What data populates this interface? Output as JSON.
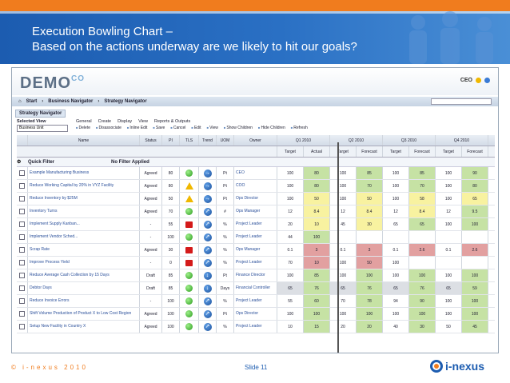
{
  "slide": {
    "title_line1": "Execution Bowling Chart –",
    "title_line2": "Based on the actions underway are we likely to hit our goals?",
    "footer_left": "© i-nexus 2010",
    "footer_mid": "Slide 11",
    "footer_logo": "i-nexus"
  },
  "app": {
    "logo_main": "DEMO",
    "logo_co": "CO",
    "user": "CEO",
    "nav": [
      "Start",
      "Business Navigator",
      "Strategy Navigator"
    ],
    "panel_title": "Strategy Navigator",
    "selected_view_label": "Selected View",
    "selected_view_value": "Business Unit",
    "menu_tabs": [
      "General",
      "Create",
      "Display",
      "View",
      "Reports & Outputs"
    ],
    "toolbar": [
      "Delete",
      "Disassociate",
      "Inline Edit",
      "Save",
      "Cancel",
      "Edit",
      "View",
      "Show Children",
      "Hide Children",
      "Refresh"
    ],
    "quick_filter": "Quick Filter",
    "no_filter": "No Filter Applied"
  },
  "grid": {
    "headers": [
      "Name",
      "Status",
      "PI",
      "TLS",
      "Trend",
      "UOM",
      "Owner"
    ],
    "quarters": [
      "Q1 2010",
      "Q2 2010",
      "Q3 2010",
      "Q4 2010"
    ],
    "sub_headers": [
      "Target",
      "Actual",
      "Target",
      "Forecast",
      "Target",
      "Forecast",
      "Target",
      "Forecast"
    ],
    "rows": [
      {
        "name": "Example Manufacturing Business",
        "status": "Agreed",
        "pi": "80",
        "tls": "green",
        "trend": "→",
        "uom": "Pt",
        "owner": "CEO",
        "vals": [
          "100",
          "80",
          "100",
          "85",
          "100",
          "85",
          "100",
          "90"
        ],
        "cls": [
          "",
          "bg-green",
          "",
          "bg-green",
          "",
          "bg-green",
          "",
          "bg-green"
        ]
      },
      {
        "name": "Reduce Working Capital by 20% in VYZ Facility",
        "status": "Agreed",
        "pi": "80",
        "tls": "amber",
        "trend": "→",
        "uom": "Pt",
        "owner": "COO",
        "vals": [
          "100",
          "80",
          "100",
          "70",
          "100",
          "70",
          "100",
          "80"
        ],
        "cls": [
          "",
          "bg-green",
          "",
          "bg-green",
          "",
          "bg-green",
          "",
          "bg-green"
        ]
      },
      {
        "name": "Reduce Inventory by $25M",
        "status": "Agreed",
        "pi": "50",
        "tls": "amber",
        "trend": "→",
        "uom": "Pt",
        "owner": "Ops Director",
        "vals": [
          "100",
          "50",
          "100",
          "50",
          "100",
          "58",
          "100",
          "65"
        ],
        "cls": [
          "",
          "bg-yellow",
          "",
          "bg-yellow",
          "",
          "bg-yellow",
          "",
          "bg-yellow"
        ]
      },
      {
        "name": "Inventory Turns",
        "status": "Agreed",
        "pi": "70",
        "tls": "green",
        "trend": "↗",
        "uom": "#",
        "owner": "Ops Manager",
        "vals": [
          "12",
          "8.4",
          "12",
          "8.4",
          "12",
          "8.4",
          "12",
          "9.5"
        ],
        "cls": [
          "",
          "bg-yellow",
          "",
          "bg-yellow",
          "",
          "bg-yellow",
          "",
          "bg-green"
        ]
      },
      {
        "name": "Implement Supply Kanban...",
        "status": "-",
        "pi": "55",
        "tls": "red",
        "trend": "↗",
        "uom": "%",
        "owner": "Project Leader",
        "vals": [
          "20",
          "10",
          "45",
          "30",
          "65",
          "65",
          "100",
          "100"
        ],
        "cls": [
          "",
          "bg-yellow",
          "",
          "bg-yellow",
          "",
          "bg-green",
          "",
          "bg-green"
        ]
      },
      {
        "name": "Implement Vendor Sched...",
        "status": "-",
        "pi": "100",
        "tls": "green",
        "trend": "↗",
        "uom": "%",
        "owner": "Project Leader",
        "vals": [
          "44",
          "100",
          "",
          "",
          "",
          "",
          "",
          ""
        ],
        "cls": [
          "",
          "bg-green",
          "",
          "",
          "",
          "",
          "",
          ""
        ]
      },
      {
        "name": "Scrap Rate",
        "status": "Agreed",
        "pi": "30",
        "tls": "red",
        "trend": "↗",
        "uom": "%",
        "owner": "Ops Manager",
        "vals": [
          "0.1",
          "3",
          "0.1",
          "3",
          "0.1",
          "2.6",
          "0.1",
          "2.6"
        ],
        "cls": [
          "",
          "bg-red",
          "",
          "bg-red",
          "",
          "bg-red",
          "",
          "bg-red"
        ]
      },
      {
        "name": "Improve Process Yield",
        "status": "-",
        "pi": "0",
        "tls": "red",
        "trend": "↗",
        "uom": "%",
        "owner": "Project Leader",
        "vals": [
          "70",
          "10",
          "100",
          "50",
          "100",
          "",
          "",
          ""
        ],
        "cls": [
          "",
          "bg-red",
          "",
          "bg-red",
          "",
          "",
          "",
          ""
        ]
      },
      {
        "name": "Reduce Average Cash Collection by 15 Days",
        "status": "Draft",
        "pi": "85",
        "tls": "green",
        "trend": "↓",
        "uom": "Pt",
        "owner": "Finance Director",
        "vals": [
          "100",
          "85",
          "100",
          "100",
          "100",
          "100",
          "100",
          "100"
        ],
        "cls": [
          "",
          "bg-green",
          "",
          "bg-green",
          "",
          "bg-green",
          "",
          "bg-green"
        ]
      },
      {
        "name": "Debtor Days",
        "status": "Draft",
        "pi": "85",
        "tls": "green",
        "trend": "↓",
        "uom": "Days",
        "owner": "Financial Controller",
        "vals": [
          "65",
          "76",
          "65",
          "76",
          "65",
          "76",
          "65",
          "59"
        ],
        "cls": [
          "bg-grey",
          "bg-green",
          "bg-grey",
          "bg-green",
          "bg-grey",
          "bg-green",
          "bg-grey",
          "bg-green"
        ]
      },
      {
        "name": "Reduce Invoice Errors",
        "status": "-",
        "pi": "100",
        "tls": "green",
        "trend": "↗",
        "uom": "%",
        "owner": "Project Leader",
        "vals": [
          "55",
          "60",
          "70",
          "78",
          "94",
          "90",
          "100",
          "100"
        ],
        "cls": [
          "",
          "bg-green",
          "",
          "bg-green",
          "",
          "bg-green",
          "",
          "bg-green"
        ]
      },
      {
        "name": "Shift Volume Production of Product X to Low Cost Region",
        "status": "Agreed",
        "pi": "100",
        "tls": "green",
        "trend": "↗",
        "uom": "Pt",
        "owner": "Ops Director",
        "vals": [
          "100",
          "100",
          "100",
          "100",
          "100",
          "100",
          "100",
          "100"
        ],
        "cls": [
          "",
          "bg-green",
          "",
          "bg-green",
          "",
          "bg-green",
          "",
          "bg-green"
        ]
      },
      {
        "name": "Setup New Facility in Country X",
        "status": "Agreed",
        "pi": "100",
        "tls": "green",
        "trend": "↗",
        "uom": "%",
        "owner": "Project Leader",
        "vals": [
          "10",
          "15",
          "20",
          "20",
          "40",
          "30",
          "50",
          "45"
        ],
        "cls": [
          "",
          "bg-green",
          "",
          "bg-green",
          "",
          "bg-green",
          "",
          "bg-green"
        ]
      }
    ]
  }
}
